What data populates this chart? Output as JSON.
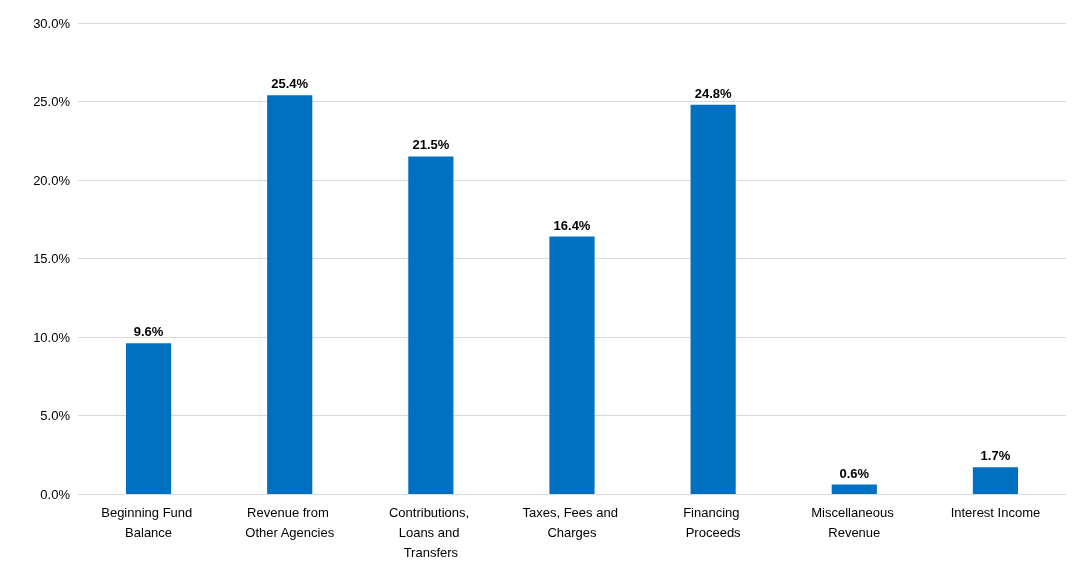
{
  "chart_data": {
    "type": "bar",
    "categories": [
      "Beginning Fund Balance",
      "Revenue from Other Agencies",
      "Contributions, Loans and Transfers",
      "Taxes, Fees and Charges",
      "Financing Proceeds",
      "Miscellaneous Revenue",
      "Interest Income"
    ],
    "values": [
      9.6,
      25.4,
      21.5,
      16.4,
      24.8,
      0.6,
      1.7
    ],
    "value_labels": [
      "9.6%",
      "25.4%",
      "21.5%",
      "16.4%",
      "24.8%",
      "0.6%",
      "1.7%"
    ],
    "color": "#0070c0",
    "ylim": [
      0,
      30
    ],
    "yticks": [
      {
        "value": 0,
        "label": "0.0%"
      },
      {
        "value": 5,
        "label": "5.0%"
      },
      {
        "value": 10,
        "label": "10.0%"
      },
      {
        "value": 15,
        "label": "15.0%"
      },
      {
        "value": 20,
        "label": "20.0%"
      },
      {
        "value": 25,
        "label": "25.0%"
      },
      {
        "value": 30,
        "label": "30.0%"
      }
    ],
    "grid": "y"
  }
}
